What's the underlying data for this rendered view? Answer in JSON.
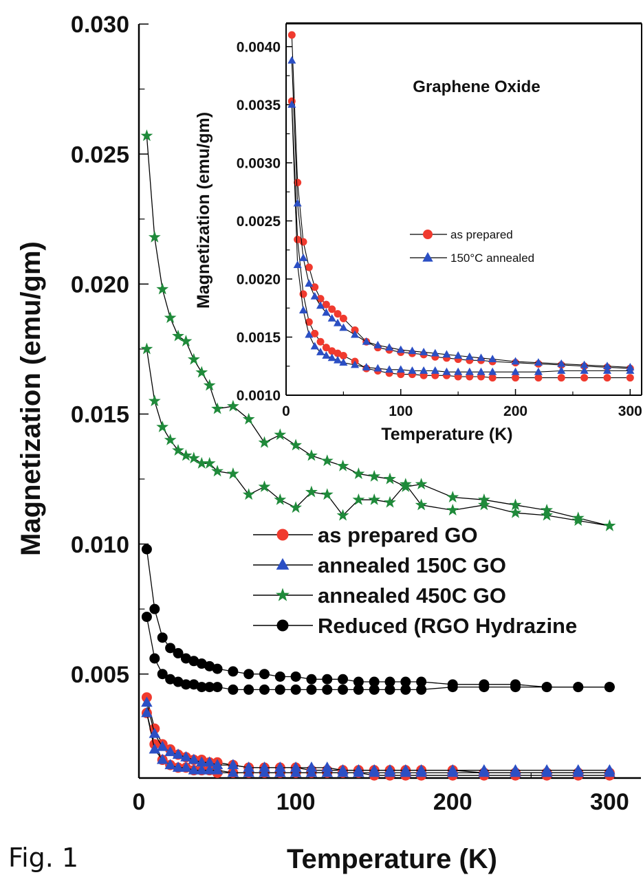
{
  "caption": "Fig. 1",
  "colors": {
    "red": "#f03a2e",
    "blue": "#2b4fc4",
    "green": "#1f8a3a",
    "black": "#000000"
  },
  "chart_data": [
    {
      "type": "line",
      "title": "",
      "xlabel": "Temperature (K)",
      "ylabel": "Magnetization (emu/gm)",
      "xlim": [
        0,
        320
      ],
      "ylim": [
        0.001,
        0.03
      ],
      "xticks": [
        0,
        100,
        200,
        300
      ],
      "xtick_labels": [
        "0",
        "100",
        "200",
        "300"
      ],
      "yticks": [
        0.005,
        0.01,
        0.015,
        0.02,
        0.025,
        0.03
      ],
      "ytick_labels": [
        "0.005",
        "0.010",
        "0.015",
        "0.020",
        "0.025",
        "0.030"
      ],
      "legend_position": "center-right",
      "grid": false,
      "series": [
        {
          "name": " as prepared GO",
          "color": "#f03a2e",
          "marker": "circle",
          "branches": [
            {
              "x": [
                5,
                10,
                15,
                20,
                25,
                30,
                35,
                40,
                45,
                50,
                60,
                70,
                80,
                90,
                100,
                110,
                120,
                130,
                140,
                150,
                160,
                170,
                180,
                200,
                220,
                240,
                260,
                280,
                300
              ],
              "y": [
                0.0041,
                0.0029,
                0.0023,
                0.0021,
                0.0019,
                0.0018,
                0.0017,
                0.0017,
                0.0016,
                0.0016,
                0.0015,
                0.0014,
                0.0014,
                0.0014,
                0.0014,
                0.0013,
                0.0013,
                0.0013,
                0.0013,
                0.0013,
                0.0013,
                0.0013,
                0.0013,
                0.0013,
                0.0012,
                0.0012,
                0.0012,
                0.0012,
                0.0012
              ]
            },
            {
              "x": [
                5,
                10,
                15,
                20,
                25,
                30,
                35,
                40,
                45,
                50,
                60,
                70,
                80,
                90,
                100,
                110,
                120,
                130,
                140,
                150,
                160,
                170,
                180,
                200,
                220,
                240,
                260,
                280,
                300
              ],
              "y": [
                0.0035,
                0.0023,
                0.0017,
                0.0015,
                0.0014,
                0.0014,
                0.0013,
                0.0013,
                0.0013,
                0.0012,
                0.0012,
                0.0012,
                0.0012,
                0.0012,
                0.0012,
                0.0012,
                0.0012,
                0.0012,
                0.0012,
                0.0011,
                0.0011,
                0.0011,
                0.0011,
                0.0011,
                0.0011,
                0.0011,
                0.0011,
                0.0011,
                0.0011
              ]
            }
          ]
        },
        {
          "name": "annealed 150C GO",
          "color": "#2b4fc4",
          "marker": "triangle",
          "branches": [
            {
              "x": [
                5,
                10,
                15,
                20,
                25,
                30,
                35,
                40,
                45,
                50,
                60,
                70,
                80,
                90,
                100,
                110,
                120,
                130,
                140,
                150,
                160,
                170,
                180,
                200,
                220,
                240,
                260,
                280,
                300
              ],
              "y": [
                0.0039,
                0.0027,
                0.0022,
                0.002,
                0.0019,
                0.0018,
                0.0017,
                0.0016,
                0.0016,
                0.0015,
                0.0015,
                0.0014,
                0.0014,
                0.0014,
                0.0014,
                0.0014,
                0.0014,
                0.0013,
                0.0013,
                0.0013,
                0.0013,
                0.0013,
                0.0013,
                0.0013,
                0.0013,
                0.0013,
                0.0013,
                0.0013,
                0.0013
              ]
            },
            {
              "x": [
                5,
                10,
                15,
                20,
                25,
                30,
                35,
                40,
                45,
                50,
                60,
                70,
                80,
                90,
                100,
                110,
                120,
                130,
                140,
                150,
                160,
                170,
                180,
                200,
                220,
                240,
                260,
                280,
                300
              ],
              "y": [
                0.0035,
                0.0021,
                0.0017,
                0.0015,
                0.0014,
                0.0014,
                0.0013,
                0.0013,
                0.0013,
                0.0013,
                0.0012,
                0.0012,
                0.0012,
                0.0012,
                0.0012,
                0.0012,
                0.0012,
                0.0012,
                0.0012,
                0.0012,
                0.0012,
                0.0012,
                0.0012,
                0.0012,
                0.0012,
                0.0012,
                0.0012,
                0.0012,
                0.0012
              ]
            }
          ]
        },
        {
          "name": "annealed 450C GO",
          "color": "#1f8a3a",
          "marker": "star",
          "branches": [
            {
              "x": [
                5,
                10,
                15,
                20,
                25,
                30,
                35,
                40,
                45,
                50,
                60,
                70,
                80,
                90,
                100,
                110,
                120,
                130,
                140,
                150,
                160,
                170,
                180,
                200,
                220,
                240,
                260,
                280,
                300
              ],
              "y": [
                0.0257,
                0.0218,
                0.0198,
                0.0187,
                0.018,
                0.0178,
                0.0171,
                0.0166,
                0.0161,
                0.0152,
                0.0153,
                0.0148,
                0.0139,
                0.0142,
                0.0138,
                0.0134,
                0.0132,
                0.013,
                0.0127,
                0.0126,
                0.0125,
                0.0122,
                0.0123,
                0.0118,
                0.0117,
                0.0115,
                0.0113,
                0.011,
                0.0107
              ]
            },
            {
              "x": [
                5,
                10,
                15,
                20,
                25,
                30,
                35,
                40,
                45,
                50,
                60,
                70,
                80,
                90,
                100,
                110,
                120,
                130,
                140,
                150,
                160,
                170,
                180,
                200,
                220,
                240,
                260,
                280,
                300
              ],
              "y": [
                0.0175,
                0.0155,
                0.0145,
                0.014,
                0.0136,
                0.0134,
                0.0133,
                0.0131,
                0.0131,
                0.0128,
                0.0127,
                0.0119,
                0.0122,
                0.0117,
                0.0114,
                0.012,
                0.0119,
                0.0111,
                0.0117,
                0.0117,
                0.0116,
                0.0123,
                0.0115,
                0.0113,
                0.0115,
                0.0112,
                0.0111,
                0.0109,
                0.0107
              ]
            }
          ]
        },
        {
          "name": "Reduced (RGO Hydrazine",
          "color": "#000000",
          "marker": "circle",
          "branches": [
            {
              "x": [
                5,
                10,
                15,
                20,
                25,
                30,
                35,
                40,
                45,
                50,
                60,
                70,
                80,
                90,
                100,
                110,
                120,
                130,
                140,
                150,
                160,
                170,
                180,
                200,
                220,
                240,
                260,
                280,
                300
              ],
              "y": [
                0.0098,
                0.0075,
                0.0064,
                0.006,
                0.0058,
                0.0056,
                0.0055,
                0.0054,
                0.0053,
                0.0052,
                0.0051,
                0.005,
                0.005,
                0.0049,
                0.0049,
                0.0048,
                0.0048,
                0.0048,
                0.0047,
                0.0047,
                0.0047,
                0.0047,
                0.0047,
                0.0046,
                0.0046,
                0.0046,
                0.0045,
                0.0045,
                0.0045
              ]
            },
            {
              "x": [
                5,
                10,
                15,
                20,
                25,
                30,
                35,
                40,
                45,
                50,
                60,
                70,
                80,
                90,
                100,
                110,
                120,
                130,
                140,
                150,
                160,
                170,
                180,
                200,
                220,
                240,
                260,
                280,
                300
              ],
              "y": [
                0.0072,
                0.0056,
                0.005,
                0.0048,
                0.0047,
                0.0046,
                0.0046,
                0.0045,
                0.0045,
                0.0045,
                0.0044,
                0.0044,
                0.0044,
                0.0044,
                0.0044,
                0.0044,
                0.0044,
                0.0044,
                0.0044,
                0.0044,
                0.0044,
                0.0044,
                0.0044,
                0.0045,
                0.0045,
                0.0045,
                0.0045,
                0.0045,
                0.0045
              ]
            }
          ]
        }
      ]
    },
    {
      "type": "line",
      "title": "Graphene Oxide",
      "xlabel": "Temperature (K)",
      "ylabel": "Magnetization (emu/gm)",
      "xlim": [
        0,
        310
      ],
      "ylim": [
        0.001,
        0.0042
      ],
      "xticks": [
        0,
        100,
        200,
        300
      ],
      "xtick_labels": [
        "0",
        "100",
        "200",
        "300"
      ],
      "yticks": [
        0.001,
        0.0015,
        0.002,
        0.0025,
        0.003,
        0.0035,
        0.004
      ],
      "ytick_labels": [
        "0.0010",
        "0.0015",
        "0.0020",
        "0.0025",
        "0.0030",
        "0.0035",
        "0.0040"
      ],
      "legend_position": "center",
      "grid": false,
      "series": [
        {
          "name": "as prepared",
          "color": "#f03a2e",
          "marker": "circle",
          "branches": [
            {
              "x": [
                5,
                10,
                15,
                20,
                25,
                30,
                35,
                40,
                45,
                50,
                60,
                70,
                80,
                90,
                100,
                110,
                120,
                130,
                140,
                150,
                160,
                170,
                180,
                200,
                220,
                240,
                260,
                280,
                300
              ],
              "y": [
                0.0041,
                0.00283,
                0.00232,
                0.0021,
                0.00193,
                0.00183,
                0.00178,
                0.00174,
                0.0017,
                0.00166,
                0.00156,
                0.00146,
                0.00141,
                0.00139,
                0.00137,
                0.00136,
                0.00135,
                0.00133,
                0.00132,
                0.00131,
                0.0013,
                0.0013,
                0.00129,
                0.00128,
                0.00127,
                0.00126,
                0.00125,
                0.00124,
                0.00123
              ]
            },
            {
              "x": [
                5,
                10,
                15,
                20,
                25,
                30,
                35,
                40,
                45,
                50,
                60,
                70,
                80,
                90,
                100,
                110,
                120,
                130,
                140,
                150,
                160,
                170,
                180,
                200,
                220,
                240,
                260,
                280,
                300
              ],
              "y": [
                0.00353,
                0.00234,
                0.00187,
                0.00163,
                0.00153,
                0.00146,
                0.00141,
                0.00138,
                0.00136,
                0.00134,
                0.00129,
                0.00123,
                0.00121,
                0.00119,
                0.00118,
                0.00118,
                0.00117,
                0.00117,
                0.00117,
                0.00116,
                0.00116,
                0.00116,
                0.00115,
                0.00115,
                0.00115,
                0.00115,
                0.00115,
                0.00115,
                0.00115
              ]
            }
          ]
        },
        {
          "name": "150°C annealed",
          "color": "#2b4fc4",
          "marker": "triangle",
          "branches": [
            {
              "x": [
                5,
                10,
                15,
                20,
                25,
                30,
                35,
                40,
                45,
                50,
                60,
                70,
                80,
                90,
                100,
                110,
                120,
                130,
                140,
                150,
                160,
                170,
                180,
                200,
                220,
                240,
                260,
                280,
                300
              ],
              "y": [
                0.00388,
                0.00265,
                0.00218,
                0.00196,
                0.00185,
                0.00177,
                0.00171,
                0.00166,
                0.00162,
                0.00158,
                0.00152,
                0.00146,
                0.00143,
                0.00141,
                0.00139,
                0.00138,
                0.00137,
                0.00136,
                0.00135,
                0.00134,
                0.00133,
                0.00132,
                0.00131,
                0.00129,
                0.00128,
                0.00127,
                0.00126,
                0.00125,
                0.00124
              ]
            },
            {
              "x": [
                5,
                10,
                15,
                20,
                25,
                30,
                35,
                40,
                45,
                50,
                60,
                70,
                80,
                90,
                100,
                110,
                120,
                130,
                140,
                150,
                160,
                170,
                180,
                200,
                220,
                240,
                260,
                280,
                300
              ],
              "y": [
                0.0035,
                0.00212,
                0.00173,
                0.00152,
                0.00142,
                0.00137,
                0.00134,
                0.00132,
                0.0013,
                0.00128,
                0.00126,
                0.00124,
                0.00123,
                0.00122,
                0.00122,
                0.00121,
                0.00121,
                0.00121,
                0.0012,
                0.0012,
                0.0012,
                0.0012,
                0.0012,
                0.0012,
                0.0012,
                0.00121,
                0.00121,
                0.00121,
                0.00121
              ]
            }
          ]
        }
      ]
    }
  ]
}
